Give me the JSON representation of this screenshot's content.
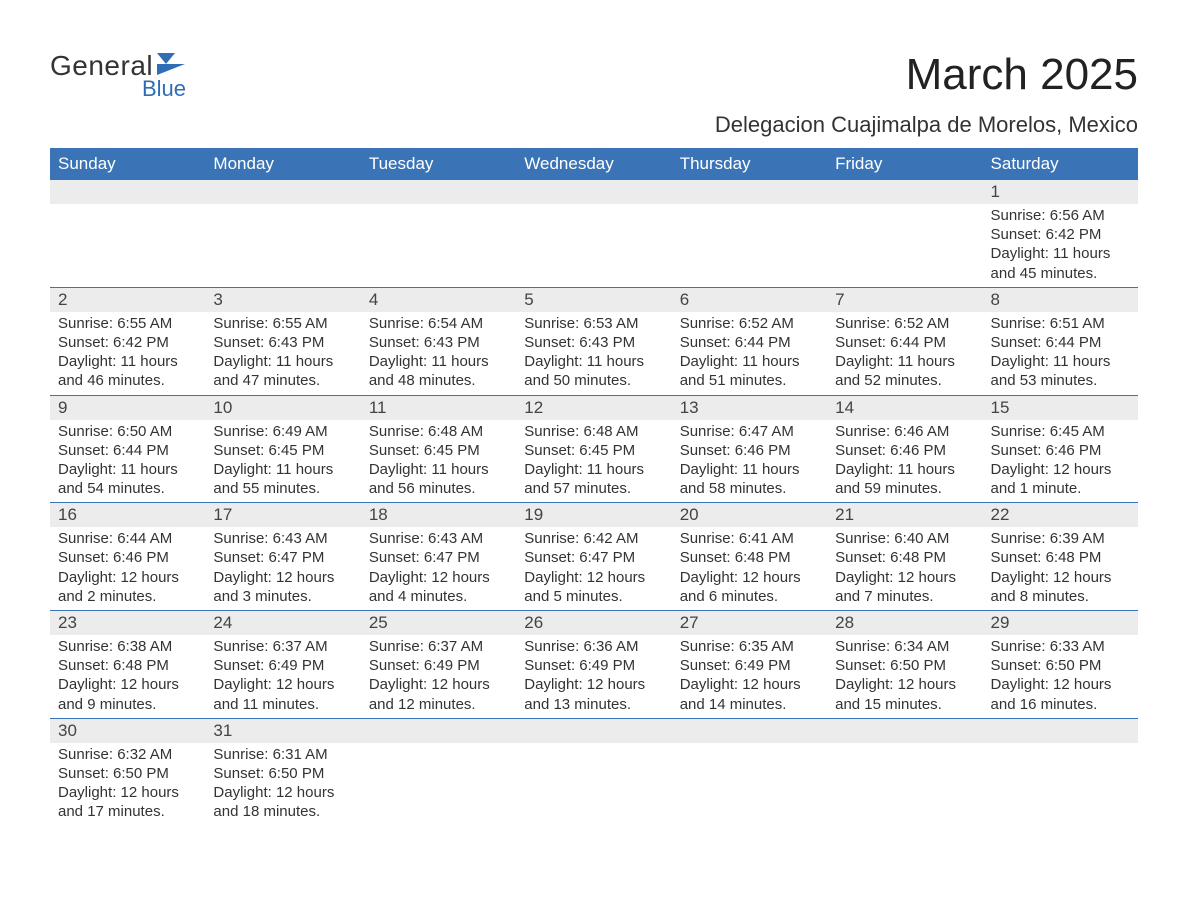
{
  "logo": {
    "main": "General",
    "sub": "Blue",
    "shape_color": "#2f6eb5"
  },
  "title": "March 2025",
  "location": "Delegacion Cuajimalpa de Morelos, Mexico",
  "colors": {
    "header_bg": "#3a74b6",
    "header_text": "#ffffff",
    "strip_bg": "#ececec",
    "rule": "#3a74b6",
    "text": "#333333"
  },
  "day_headers": [
    "Sunday",
    "Monday",
    "Tuesday",
    "Wednesday",
    "Thursday",
    "Friday",
    "Saturday"
  ],
  "weeks": [
    [
      {
        "num": "",
        "sunrise": "",
        "sunset": "",
        "daylight1": "",
        "daylight2": ""
      },
      {
        "num": "",
        "sunrise": "",
        "sunset": "",
        "daylight1": "",
        "daylight2": ""
      },
      {
        "num": "",
        "sunrise": "",
        "sunset": "",
        "daylight1": "",
        "daylight2": ""
      },
      {
        "num": "",
        "sunrise": "",
        "sunset": "",
        "daylight1": "",
        "daylight2": ""
      },
      {
        "num": "",
        "sunrise": "",
        "sunset": "",
        "daylight1": "",
        "daylight2": ""
      },
      {
        "num": "",
        "sunrise": "",
        "sunset": "",
        "daylight1": "",
        "daylight2": ""
      },
      {
        "num": "1",
        "sunrise": "Sunrise: 6:56 AM",
        "sunset": "Sunset: 6:42 PM",
        "daylight1": "Daylight: 11 hours",
        "daylight2": "and 45 minutes."
      }
    ],
    [
      {
        "num": "2",
        "sunrise": "Sunrise: 6:55 AM",
        "sunset": "Sunset: 6:42 PM",
        "daylight1": "Daylight: 11 hours",
        "daylight2": "and 46 minutes."
      },
      {
        "num": "3",
        "sunrise": "Sunrise: 6:55 AM",
        "sunset": "Sunset: 6:43 PM",
        "daylight1": "Daylight: 11 hours",
        "daylight2": "and 47 minutes."
      },
      {
        "num": "4",
        "sunrise": "Sunrise: 6:54 AM",
        "sunset": "Sunset: 6:43 PM",
        "daylight1": "Daylight: 11 hours",
        "daylight2": "and 48 minutes."
      },
      {
        "num": "5",
        "sunrise": "Sunrise: 6:53 AM",
        "sunset": "Sunset: 6:43 PM",
        "daylight1": "Daylight: 11 hours",
        "daylight2": "and 50 minutes."
      },
      {
        "num": "6",
        "sunrise": "Sunrise: 6:52 AM",
        "sunset": "Sunset: 6:44 PM",
        "daylight1": "Daylight: 11 hours",
        "daylight2": "and 51 minutes."
      },
      {
        "num": "7",
        "sunrise": "Sunrise: 6:52 AM",
        "sunset": "Sunset: 6:44 PM",
        "daylight1": "Daylight: 11 hours",
        "daylight2": "and 52 minutes."
      },
      {
        "num": "8",
        "sunrise": "Sunrise: 6:51 AM",
        "sunset": "Sunset: 6:44 PM",
        "daylight1": "Daylight: 11 hours",
        "daylight2": "and 53 minutes."
      }
    ],
    [
      {
        "num": "9",
        "sunrise": "Sunrise: 6:50 AM",
        "sunset": "Sunset: 6:44 PM",
        "daylight1": "Daylight: 11 hours",
        "daylight2": "and 54 minutes."
      },
      {
        "num": "10",
        "sunrise": "Sunrise: 6:49 AM",
        "sunset": "Sunset: 6:45 PM",
        "daylight1": "Daylight: 11 hours",
        "daylight2": "and 55 minutes."
      },
      {
        "num": "11",
        "sunrise": "Sunrise: 6:48 AM",
        "sunset": "Sunset: 6:45 PM",
        "daylight1": "Daylight: 11 hours",
        "daylight2": "and 56 minutes."
      },
      {
        "num": "12",
        "sunrise": "Sunrise: 6:48 AM",
        "sunset": "Sunset: 6:45 PM",
        "daylight1": "Daylight: 11 hours",
        "daylight2": "and 57 minutes."
      },
      {
        "num": "13",
        "sunrise": "Sunrise: 6:47 AM",
        "sunset": "Sunset: 6:46 PM",
        "daylight1": "Daylight: 11 hours",
        "daylight2": "and 58 minutes."
      },
      {
        "num": "14",
        "sunrise": "Sunrise: 6:46 AM",
        "sunset": "Sunset: 6:46 PM",
        "daylight1": "Daylight: 11 hours",
        "daylight2": "and 59 minutes."
      },
      {
        "num": "15",
        "sunrise": "Sunrise: 6:45 AM",
        "sunset": "Sunset: 6:46 PM",
        "daylight1": "Daylight: 12 hours",
        "daylight2": "and 1 minute."
      }
    ],
    [
      {
        "num": "16",
        "sunrise": "Sunrise: 6:44 AM",
        "sunset": "Sunset: 6:46 PM",
        "daylight1": "Daylight: 12 hours",
        "daylight2": "and 2 minutes."
      },
      {
        "num": "17",
        "sunrise": "Sunrise: 6:43 AM",
        "sunset": "Sunset: 6:47 PM",
        "daylight1": "Daylight: 12 hours",
        "daylight2": "and 3 minutes."
      },
      {
        "num": "18",
        "sunrise": "Sunrise: 6:43 AM",
        "sunset": "Sunset: 6:47 PM",
        "daylight1": "Daylight: 12 hours",
        "daylight2": "and 4 minutes."
      },
      {
        "num": "19",
        "sunrise": "Sunrise: 6:42 AM",
        "sunset": "Sunset: 6:47 PM",
        "daylight1": "Daylight: 12 hours",
        "daylight2": "and 5 minutes."
      },
      {
        "num": "20",
        "sunrise": "Sunrise: 6:41 AM",
        "sunset": "Sunset: 6:48 PM",
        "daylight1": "Daylight: 12 hours",
        "daylight2": "and 6 minutes."
      },
      {
        "num": "21",
        "sunrise": "Sunrise: 6:40 AM",
        "sunset": "Sunset: 6:48 PM",
        "daylight1": "Daylight: 12 hours",
        "daylight2": "and 7 minutes."
      },
      {
        "num": "22",
        "sunrise": "Sunrise: 6:39 AM",
        "sunset": "Sunset: 6:48 PM",
        "daylight1": "Daylight: 12 hours",
        "daylight2": "and 8 minutes."
      }
    ],
    [
      {
        "num": "23",
        "sunrise": "Sunrise: 6:38 AM",
        "sunset": "Sunset: 6:48 PM",
        "daylight1": "Daylight: 12 hours",
        "daylight2": "and 9 minutes."
      },
      {
        "num": "24",
        "sunrise": "Sunrise: 6:37 AM",
        "sunset": "Sunset: 6:49 PM",
        "daylight1": "Daylight: 12 hours",
        "daylight2": "and 11 minutes."
      },
      {
        "num": "25",
        "sunrise": "Sunrise: 6:37 AM",
        "sunset": "Sunset: 6:49 PM",
        "daylight1": "Daylight: 12 hours",
        "daylight2": "and 12 minutes."
      },
      {
        "num": "26",
        "sunrise": "Sunrise: 6:36 AM",
        "sunset": "Sunset: 6:49 PM",
        "daylight1": "Daylight: 12 hours",
        "daylight2": "and 13 minutes."
      },
      {
        "num": "27",
        "sunrise": "Sunrise: 6:35 AM",
        "sunset": "Sunset: 6:49 PM",
        "daylight1": "Daylight: 12 hours",
        "daylight2": "and 14 minutes."
      },
      {
        "num": "28",
        "sunrise": "Sunrise: 6:34 AM",
        "sunset": "Sunset: 6:50 PM",
        "daylight1": "Daylight: 12 hours",
        "daylight2": "and 15 minutes."
      },
      {
        "num": "29",
        "sunrise": "Sunrise: 6:33 AM",
        "sunset": "Sunset: 6:50 PM",
        "daylight1": "Daylight: 12 hours",
        "daylight2": "and 16 minutes."
      }
    ],
    [
      {
        "num": "30",
        "sunrise": "Sunrise: 6:32 AM",
        "sunset": "Sunset: 6:50 PM",
        "daylight1": "Daylight: 12 hours",
        "daylight2": "and 17 minutes."
      },
      {
        "num": "31",
        "sunrise": "Sunrise: 6:31 AM",
        "sunset": "Sunset: 6:50 PM",
        "daylight1": "Daylight: 12 hours",
        "daylight2": "and 18 minutes."
      },
      {
        "num": "",
        "sunrise": "",
        "sunset": "",
        "daylight1": "",
        "daylight2": ""
      },
      {
        "num": "",
        "sunrise": "",
        "sunset": "",
        "daylight1": "",
        "daylight2": ""
      },
      {
        "num": "",
        "sunrise": "",
        "sunset": "",
        "daylight1": "",
        "daylight2": ""
      },
      {
        "num": "",
        "sunrise": "",
        "sunset": "",
        "daylight1": "",
        "daylight2": ""
      },
      {
        "num": "",
        "sunrise": "",
        "sunset": "",
        "daylight1": "",
        "daylight2": ""
      }
    ]
  ]
}
